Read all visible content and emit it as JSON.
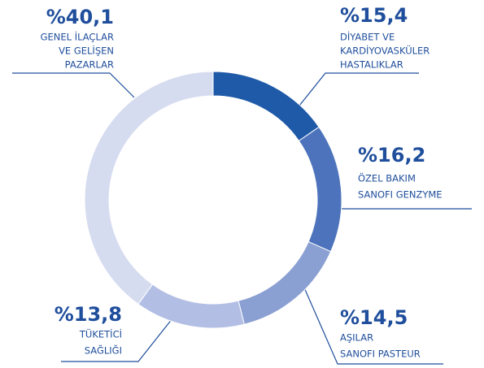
{
  "chart_data": {
    "type": "donut",
    "categories": [
      [
        "DİYABET VE",
        "KARDİYOVASKÜLER",
        "HASTALIKLAR"
      ],
      [
        "ÖZEL BAKIM",
        "SANOFI GENZYME"
      ],
      [
        "AŞILAR",
        "SANOFI PASTEUR"
      ],
      [
        "TÜKETİCİ",
        "SAĞLIĞI"
      ],
      [
        "GENEL İLAÇLAR",
        "VE GELİŞEN",
        "PAZARLAR"
      ]
    ],
    "values": [
      15.4,
      16.2,
      14.5,
      13.8,
      40.1
    ],
    "value_labels": [
      "%15,4",
      "%16,2",
      "%14,5",
      "%13,8",
      "%40,1"
    ],
    "colors": [
      "#1f5aa8",
      "#4c73bc",
      "#8a9fd2",
      "#b2bee4",
      "#d6dcf0"
    ]
  }
}
